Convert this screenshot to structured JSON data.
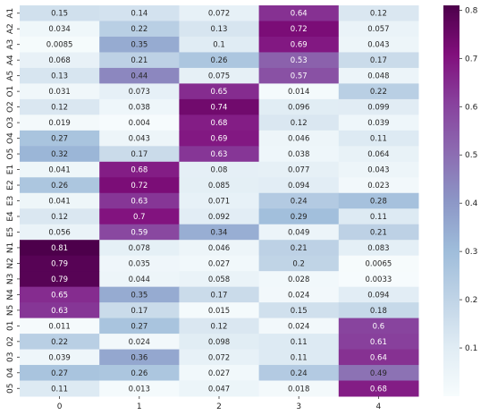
{
  "chart_data": {
    "type": "heatmap",
    "title": "",
    "xlabel": "",
    "ylabel": "",
    "x_categories": [
      "0",
      "1",
      "2",
      "3",
      "4"
    ],
    "y_categories": [
      "A1",
      "A2",
      "A3",
      "A4",
      "A5",
      "O1",
      "O2",
      "O3",
      "O4",
      "O5",
      "E1",
      "E2",
      "E3",
      "E4",
      "E5",
      "N1",
      "N2",
      "N3",
      "N4",
      "N5",
      "01",
      "02",
      "03",
      "04",
      "05"
    ],
    "values": [
      [
        0.15,
        0.14,
        0.072,
        0.64,
        0.12
      ],
      [
        0.034,
        0.22,
        0.13,
        0.72,
        0.057
      ],
      [
        0.0085,
        0.35,
        0.1,
        0.69,
        0.043
      ],
      [
        0.068,
        0.21,
        0.26,
        0.53,
        0.17
      ],
      [
        0.13,
        0.44,
        0.075,
        0.57,
        0.048
      ],
      [
        0.031,
        0.073,
        0.65,
        0.014,
        0.22
      ],
      [
        0.12,
        0.038,
        0.74,
        0.096,
        0.099
      ],
      [
        0.019,
        0.004,
        0.68,
        0.12,
        0.039
      ],
      [
        0.27,
        0.043,
        0.69,
        0.046,
        0.11
      ],
      [
        0.32,
        0.17,
        0.63,
        0.038,
        0.064
      ],
      [
        0.041,
        0.68,
        0.08,
        0.077,
        0.043
      ],
      [
        0.26,
        0.72,
        0.085,
        0.094,
        0.023
      ],
      [
        0.041,
        0.63,
        0.071,
        0.24,
        0.28
      ],
      [
        0.12,
        0.7,
        0.092,
        0.29,
        0.11
      ],
      [
        0.056,
        0.59,
        0.34,
        0.049,
        0.21
      ],
      [
        0.81,
        0.078,
        0.046,
        0.21,
        0.083
      ],
      [
        0.79,
        0.035,
        0.027,
        0.2,
        0.0065
      ],
      [
        0.79,
        0.044,
        0.058,
        0.028,
        0.0033
      ],
      [
        0.65,
        0.35,
        0.17,
        0.024,
        0.094
      ],
      [
        0.63,
        0.17,
        0.015,
        0.15,
        0.18
      ],
      [
        0.011,
        0.27,
        0.12,
        0.024,
        0.6
      ],
      [
        0.22,
        0.024,
        0.098,
        0.11,
        0.61
      ],
      [
        0.039,
        0.36,
        0.072,
        0.11,
        0.64
      ],
      [
        0.27,
        0.26,
        0.027,
        0.24,
        0.49
      ],
      [
        0.11,
        0.013,
        0.047,
        0.018,
        0.68
      ]
    ],
    "annotations": true,
    "colormap": "BuPu",
    "colorbar": {
      "range": [
        0.0,
        0.81
      ],
      "ticks": [
        0.1,
        0.2,
        0.3,
        0.4,
        0.5,
        0.6,
        0.7,
        0.8
      ]
    },
    "grid": false,
    "legend": "colorbar-right"
  }
}
